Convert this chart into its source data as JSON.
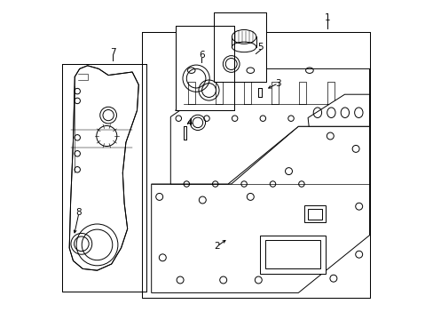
{
  "background": "#ffffff",
  "line_color": "#000000",
  "fig_width": 4.89,
  "fig_height": 3.6,
  "dpi": 100,
  "font_size": 7.5,
  "lw": 0.7
}
